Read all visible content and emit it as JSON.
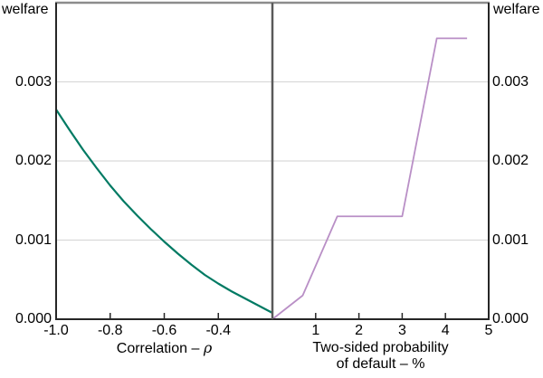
{
  "chart_data": {
    "type": "line",
    "title": "",
    "y_unit_label": "welfare",
    "y_ticks": [
      "0.000",
      "0.001",
      "0.002",
      "0.003"
    ],
    "y_tick_values": [
      0,
      0.001,
      0.002,
      0.003
    ],
    "ylim": [
      0,
      0.004
    ],
    "grid": "horizontal gridlines at 0.001, 0.002, 0.003; legend none",
    "panels": [
      {
        "name": "correlation-panel",
        "xlabel_prefix": "Correlation – ",
        "xlabel_symbol": "ρ",
        "xlim": [
          -1.0,
          -0.2
        ],
        "x_ticks": [
          "-1.0",
          "-0.8",
          "-0.6",
          "-0.4"
        ],
        "x_tick_values": [
          -1.0,
          -0.8,
          -0.6,
          -0.4
        ],
        "series": [
          {
            "name": "welfare-vs-correlation",
            "color": "#007a63",
            "x": [
              -1.0,
              -0.95,
              -0.9,
              -0.85,
              -0.8,
              -0.75,
              -0.7,
              -0.65,
              -0.6,
              -0.55,
              -0.5,
              -0.45,
              -0.4,
              -0.35,
              -0.3,
              -0.25,
              -0.2
            ],
            "y": [
              0.00265,
              0.00239,
              0.00214,
              0.00191,
              0.00169,
              0.00149,
              0.00131,
              0.00114,
              0.00098,
              0.00083,
              0.00069,
              0.00056,
              0.00045,
              0.00035,
              0.00026,
              0.00017,
              8e-05
            ]
          }
        ]
      },
      {
        "name": "default-probability-panel",
        "xlabel_line1": "Two-sided probability",
        "xlabel_line2": "of default – %",
        "xlim": [
          0,
          5
        ],
        "x_ticks": [
          "1",
          "2",
          "3",
          "4",
          "5"
        ],
        "x_tick_values": [
          1,
          2,
          3,
          4,
          5
        ],
        "series": [
          {
            "name": "welfare-vs-default-probability",
            "color": "#b98fc6",
            "x": [
              0,
              0.7,
              1.5,
              3.0,
              3.8,
              4.5
            ],
            "y": [
              0,
              0.0003,
              0.0013,
              0.0013,
              0.00355,
              0.00355
            ]
          }
        ]
      }
    ],
    "colors": {
      "green_line": "#007a63",
      "purple_line": "#b98fc6",
      "gridline": "#d9d9d9",
      "axis": "#262626",
      "top_border": "#8c8c8c",
      "divider": "#5a5a5a",
      "text": "#000000",
      "background": "#ffffff"
    }
  }
}
